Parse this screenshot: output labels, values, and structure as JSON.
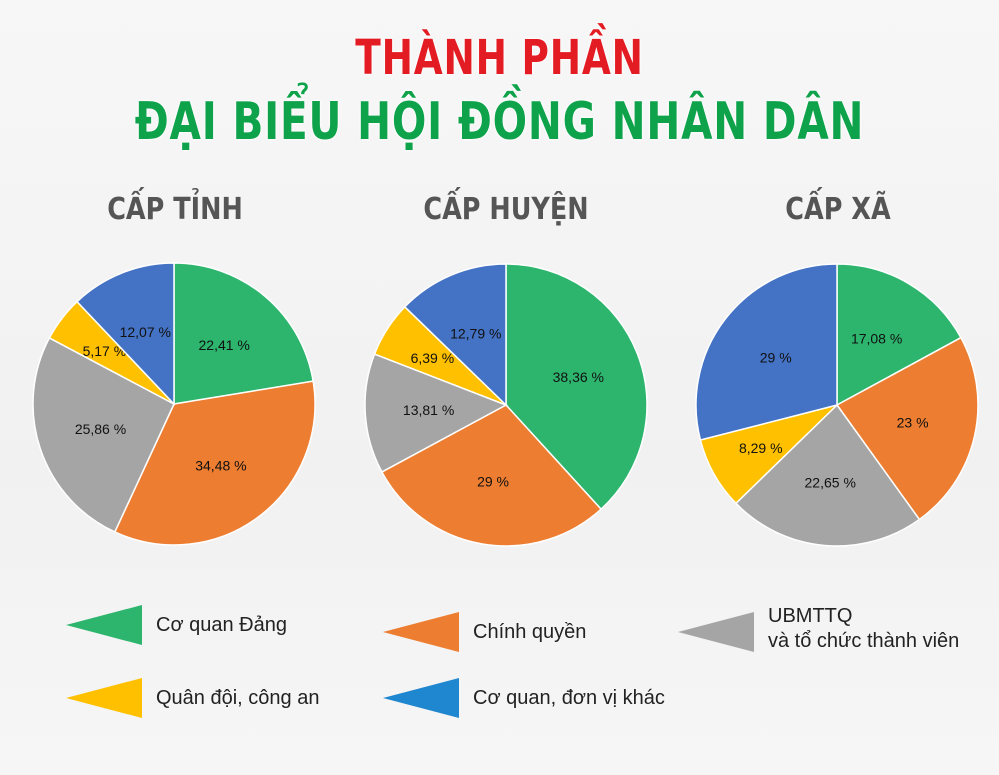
{
  "title_line1": "THÀNH PHẦN",
  "title_line2": "ĐẠI BIỂU HỘI ĐỒNG NHÂN DÂN",
  "legend": [
    {
      "label": "Cơ quan Đảng",
      "color": "#2db56e"
    },
    {
      "label": "Chính quyền",
      "color": "#ed7d31"
    },
    {
      "label": "UBMTTQ",
      "label2": "và tổ chức thành viên",
      "color": "#a5a5a5"
    },
    {
      "label": "Quân đội, công an",
      "color": "#ffc000"
    },
    {
      "label": "Cơ quan, đơn vị khác",
      "color": "#1f86d0"
    }
  ],
  "chart_data": [
    {
      "type": "pie",
      "title": "CẤP TỈNH",
      "categories": [
        "Cơ quan Đảng",
        "Chính quyền",
        "UBMTTQ và tổ chức thành viên",
        "Quân đội, công an",
        "Cơ quan, đơn vị khác"
      ],
      "values": [
        22.41,
        34.48,
        25.86,
        5.17,
        12.07
      ],
      "labels": [
        "22,41 %",
        "34,48 %",
        "25,86 %",
        "5,17 %",
        "12,07 %"
      ],
      "colors": [
        "#2db56e",
        "#ed7d31",
        "#a5a5a5",
        "#ffc000",
        "#4472c4"
      ]
    },
    {
      "type": "pie",
      "title": "CẤP HUYỆN",
      "categories": [
        "Cơ quan Đảng",
        "Chính quyền",
        "UBMTTQ và tổ chức thành viên",
        "Quân đội, công an",
        "Cơ quan, đơn vị khác"
      ],
      "values": [
        38.36,
        29,
        13.81,
        6.39,
        12.79
      ],
      "labels": [
        "38,36 %",
        "29 %",
        "13,81 %",
        "6,39 %",
        "12,79 %"
      ],
      "colors": [
        "#2db56e",
        "#ed7d31",
        "#a5a5a5",
        "#ffc000",
        "#4472c4"
      ]
    },
    {
      "type": "pie",
      "title": "CẤP XÃ",
      "categories": [
        "Cơ quan Đảng",
        "Chính quyền",
        "UBMTTQ và tổ chức thành viên",
        "Quân đội, công an",
        "Cơ quan, đơn vị khác"
      ],
      "values": [
        17.08,
        23,
        22.65,
        8.29,
        29
      ],
      "labels": [
        "17,08 %",
        "23 %",
        "22,65 %",
        "8,29 %",
        "29 %"
      ],
      "colors": [
        "#2db56e",
        "#ed7d31",
        "#a5a5a5",
        "#ffc000",
        "#4472c4"
      ]
    }
  ]
}
